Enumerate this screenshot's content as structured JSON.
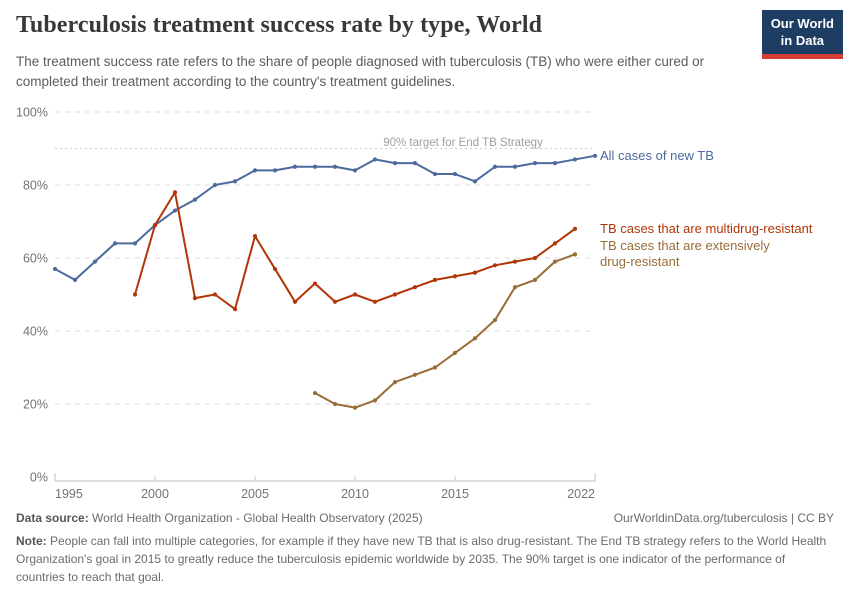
{
  "header": {
    "title": "Tuberculosis treatment success rate by type, World",
    "subtitle": "The treatment success rate refers to the share of people diagnosed with tuberculosis (TB) who were either cured or completed their treatment according to the country's treatment guidelines.",
    "logo": {
      "line1": "Our World",
      "line2": "in Data",
      "bg_color": "#1d3d63",
      "accent_color": "#d63b36"
    }
  },
  "chart_data": {
    "type": "line",
    "title": "Tuberculosis treatment success rate by type, World",
    "xlabel": "",
    "ylabel": "",
    "xlim": [
      1995,
      2022
    ],
    "ylim": [
      0,
      100
    ],
    "grid": true,
    "x_ticks": [
      1995,
      2000,
      2005,
      2010,
      2015,
      2022
    ],
    "y_tick_labels": [
      "0%",
      "20%",
      "40%",
      "60%",
      "80%",
      "100%"
    ],
    "y_tick_values": [
      0,
      20,
      40,
      60,
      80,
      100
    ],
    "target_line": {
      "value": 90,
      "label": "90% target for End TB Strategy"
    },
    "legend_position": "right-of-line-ends",
    "series": [
      {
        "name": "All cases of new TB",
        "color": "#4c6a9c",
        "x": [
          1995,
          1996,
          1997,
          1998,
          1999,
          2000,
          2001,
          2002,
          2003,
          2004,
          2005,
          2006,
          2007,
          2008,
          2009,
          2010,
          2011,
          2012,
          2013,
          2014,
          2015,
          2016,
          2017,
          2018,
          2019,
          2020,
          2021,
          2022
        ],
        "values": [
          57,
          54,
          59,
          64,
          64,
          69,
          73,
          76,
          80,
          81,
          84,
          84,
          85,
          85,
          85,
          84,
          87,
          86,
          86,
          83,
          83,
          81,
          85,
          85,
          86,
          86,
          87,
          88
        ]
      },
      {
        "name": "TB cases that are multidrug-resistant",
        "color": "#b13507",
        "x": [
          1999,
          2000,
          2001,
          2002,
          2003,
          2004,
          2005,
          2006,
          2007,
          2008,
          2009,
          2010,
          2011,
          2012,
          2013,
          2014,
          2015,
          2016,
          2017,
          2018,
          2019,
          2020,
          2021
        ],
        "values": [
          50,
          69,
          78,
          49,
          50,
          46,
          66,
          57,
          48,
          53,
          48,
          50,
          48,
          50,
          52,
          54,
          55,
          56,
          58,
          59,
          60,
          64,
          68
        ]
      },
      {
        "name": "TB cases that are extensively drug-resistant",
        "color": "#996d39",
        "x": [
          2008,
          2009,
          2010,
          2011,
          2012,
          2013,
          2014,
          2015,
          2016,
          2017,
          2018,
          2019,
          2020,
          2021
        ],
        "values": [
          23,
          20,
          19,
          21,
          26,
          28,
          30,
          34,
          38,
          43,
          52,
          54,
          59,
          61
        ]
      }
    ]
  },
  "footer": {
    "datasource_label": "Data source:",
    "datasource": "World Health Organization - Global Health Observatory (2025)",
    "citation": "OurWorldinData.org/tuberculosis | CC BY",
    "note_label": "Note:",
    "note": "People can fall into multiple categories, for example if they have new TB that is also drug-resistant. The End TB strategy refers to the World Health Organization's goal in 2015 to greatly reduce the tuberculosis epidemic worldwide by 2035. The 90% target is one indicator of the performance of countries to reach that goal."
  }
}
